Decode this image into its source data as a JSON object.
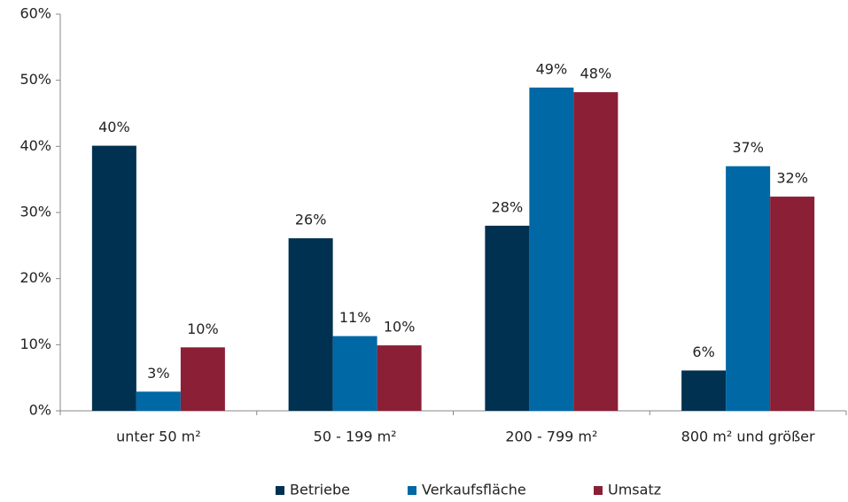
{
  "chart_data": {
    "type": "bar",
    "categories": [
      "unter 50 m²",
      "50 - 199 m²",
      "200 - 799 m²",
      "800 m² und größer"
    ],
    "series": [
      {
        "name": "Betriebe",
        "color": "#003150",
        "values": [
          40.1,
          26.1,
          28,
          6.1
        ],
        "value_labels": [
          "40%",
          "26%",
          "28%",
          "6%"
        ]
      },
      {
        "name": "Verkaufsfläche",
        "color": "#0068a5",
        "values": [
          2.9,
          11.3,
          48.9,
          37
        ],
        "value_labels": [
          "3%",
          "11%",
          "49%",
          "37%"
        ]
      },
      {
        "name": "Umsatz",
        "color": "#8a1f36",
        "values": [
          9.6,
          9.9,
          48.2,
          32.4
        ],
        "value_labels": [
          "10%",
          "10%",
          "48%",
          "32%"
        ]
      }
    ],
    "ylim": [
      0,
      60
    ],
    "yticks": [
      {
        "value": 0,
        "label": "0%"
      },
      {
        "value": 10,
        "label": "10%"
      },
      {
        "value": 20,
        "label": "20%"
      },
      {
        "value": 30,
        "label": "30%"
      },
      {
        "value": 40,
        "label": "40%"
      },
      {
        "value": 50,
        "label": "50%"
      },
      {
        "value": 60,
        "label": "60%"
      }
    ],
    "legend": "bottom"
  }
}
